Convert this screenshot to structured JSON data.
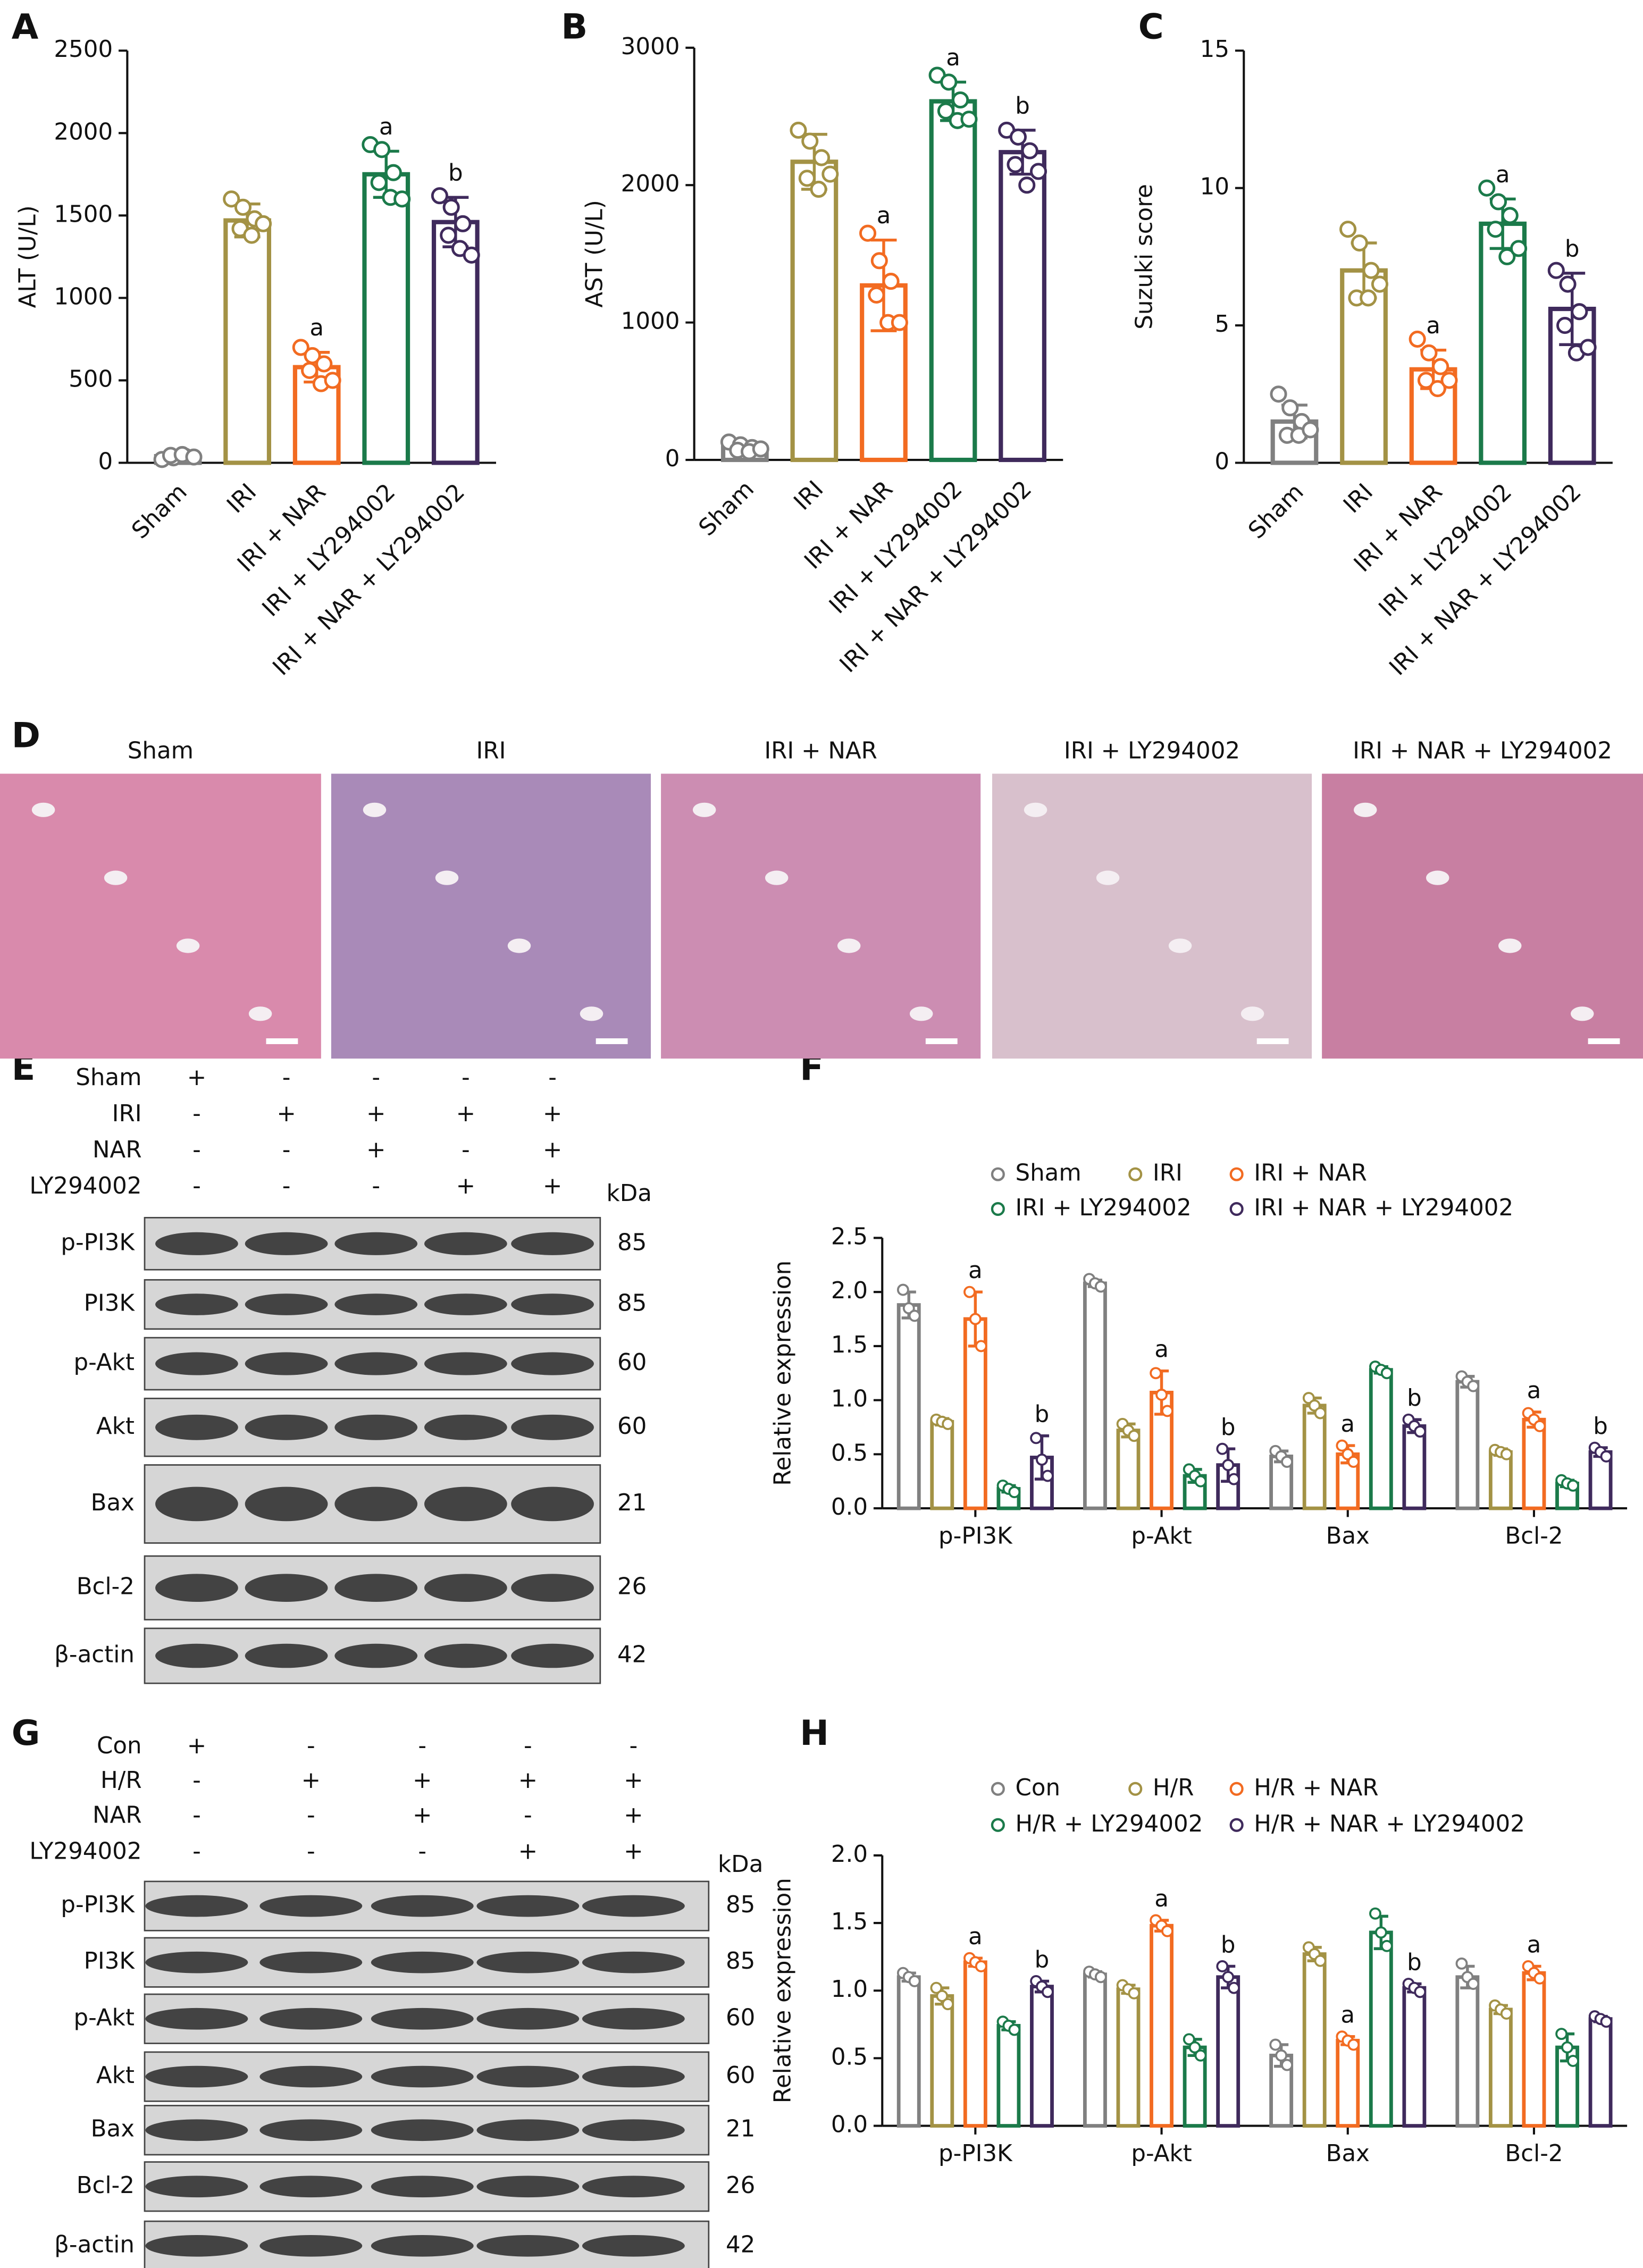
{
  "panel_labels": [
    "A",
    "B",
    "C",
    "D",
    "E",
    "F",
    "G",
    "H"
  ],
  "chart_data": [
    {
      "type": "bar",
      "ylabel": "ALT (U/L)",
      "categories": [
        "Sham",
        "IRI",
        "IRI + NAR",
        "IRI + LY294002",
        "IRI + NAR + LY294002"
      ],
      "colors": [
        "#808080",
        "#a39245",
        "#f26b21",
        "#1b7a4a",
        "#3f2a5c"
      ],
      "values": [
        40,
        1470,
        580,
        1750,
        1460
      ],
      "errors": [
        15,
        100,
        90,
        140,
        150
      ],
      "points": [
        [
          20,
          30,
          40,
          45,
          50,
          35
        ],
        [
          1600,
          1550,
          1480,
          1420,
          1380,
          1450
        ],
        [
          700,
          650,
          600,
          560,
          480,
          500
        ],
        [
          1930,
          1900,
          1760,
          1700,
          1610,
          1600
        ],
        [
          1620,
          1550,
          1450,
          1380,
          1300,
          1260
        ]
      ],
      "annotations": [
        null,
        null,
        "a",
        "a",
        "b"
      ],
      "ylim": [
        0,
        2500
      ],
      "yticks": [
        0,
        500,
        1000,
        1500,
        2000,
        2500
      ]
    },
    {
      "type": "bar",
      "ylabel": "AST (U/L)",
      "categories": [
        "Sham",
        "IRI",
        "IRI + NAR",
        "IRI + LY294002",
        "IRI + NAR + LY294002"
      ],
      "colors": [
        "#808080",
        "#a39245",
        "#f26b21",
        "#1b7a4a",
        "#3f2a5c"
      ],
      "values": [
        90,
        2170,
        1270,
        2610,
        2240
      ],
      "errors": [
        30,
        200,
        330,
        140,
        160
      ],
      "points": [
        [
          130,
          110,
          90,
          70,
          60,
          80
        ],
        [
          2400,
          2320,
          2200,
          2050,
          1970,
          2080
        ],
        [
          1650,
          1450,
          1300,
          1200,
          1000,
          1000
        ],
        [
          2800,
          2750,
          2620,
          2540,
          2470,
          2480
        ],
        [
          2400,
          2350,
          2250,
          2150,
          2000,
          2100
        ]
      ],
      "annotations": [
        null,
        null,
        "a",
        "a",
        "b"
      ],
      "ylim": [
        0,
        3000
      ],
      "yticks": [
        0,
        1000,
        2000,
        3000
      ]
    },
    {
      "type": "bar",
      "ylabel": "Suzuki score",
      "categories": [
        "Sham",
        "IRI",
        "IRI + NAR",
        "IRI + LY294002",
        "IRI + NAR + LY294002"
      ],
      "colors": [
        "#808080",
        "#a39245",
        "#f26b21",
        "#1b7a4a",
        "#3f2a5c"
      ],
      "values": [
        1.5,
        7,
        3.4,
        8.7,
        5.6
      ],
      "errors": [
        0.6,
        1,
        0.7,
        0.9,
        1.3
      ],
      "points": [
        [
          2.5,
          2,
          1.5,
          1,
          1,
          1.2
        ],
        [
          8.5,
          8,
          7,
          6,
          6,
          6.5
        ],
        [
          4.5,
          4,
          3.5,
          3,
          2.7,
          3
        ],
        [
          10,
          9.5,
          9,
          8.5,
          7.5,
          7.8
        ],
        [
          7,
          6.5,
          5.5,
          5,
          4,
          4.2
        ]
      ],
      "annotations": [
        null,
        null,
        "a",
        "a",
        "b"
      ],
      "ylim": [
        0,
        15
      ],
      "yticks": [
        0,
        5,
        10,
        15
      ]
    },
    {
      "type": "grouped_bar",
      "ylabel": "Relative expression",
      "categories": [
        "p-PI3K",
        "p-Akt",
        "Bax",
        "Bcl-2"
      ],
      "series": [
        {
          "name": "Sham",
          "color": "#808080",
          "values": [
            1.88,
            2.08,
            0.48,
            1.17
          ],
          "errors": [
            0.12,
            0.03,
            0.05,
            0.05
          ],
          "points": [
            [
              2.02,
              1.85,
              1.78
            ],
            [
              2.12,
              2.08,
              2.05
            ],
            [
              0.53,
              0.48,
              0.43
            ],
            [
              1.22,
              1.17,
              1.13
            ]
          ],
          "annotations": [
            null,
            null,
            null,
            null
          ]
        },
        {
          "name": "IRI",
          "color": "#a39245",
          "values": [
            0.8,
            0.72,
            0.95,
            0.52
          ],
          "errors": [
            0.03,
            0.06,
            0.07,
            0.03
          ],
          "points": [
            [
              0.82,
              0.8,
              0.78
            ],
            [
              0.78,
              0.72,
              0.67
            ],
            [
              1.02,
              0.95,
              0.88
            ],
            [
              0.54,
              0.52,
              0.5
            ]
          ],
          "annotations": [
            null,
            null,
            null,
            null
          ]
        },
        {
          "name": "IRI + NAR",
          "color": "#f26b21",
          "values": [
            1.75,
            1.07,
            0.5,
            0.82
          ],
          "errors": [
            0.25,
            0.2,
            0.08,
            0.07
          ],
          "points": [
            [
              2.0,
              1.75,
              1.5
            ],
            [
              1.25,
              1.05,
              0.9
            ],
            [
              0.58,
              0.5,
              0.43
            ],
            [
              0.88,
              0.82,
              0.76
            ]
          ],
          "annotations": [
            "a",
            "a",
            "a",
            "a"
          ]
        },
        {
          "name": "IRI + LY294002",
          "color": "#1b7a4a",
          "values": [
            0.18,
            0.3,
            1.28,
            0.23
          ],
          "errors": [
            0.03,
            0.06,
            0.03,
            0.03
          ],
          "points": [
            [
              0.21,
              0.18,
              0.15
            ],
            [
              0.36,
              0.3,
              0.25
            ],
            [
              1.31,
              1.28,
              1.25
            ],
            [
              0.26,
              0.23,
              0.21
            ]
          ],
          "annotations": [
            null,
            null,
            null,
            null
          ]
        },
        {
          "name": "IRI + NAR + LY294002",
          "color": "#3f2a5c",
          "values": [
            0.47,
            0.4,
            0.76,
            0.52
          ],
          "errors": [
            0.2,
            0.15,
            0.06,
            0.04
          ],
          "points": [
            [
              0.65,
              0.45,
              0.3
            ],
            [
              0.55,
              0.4,
              0.27
            ],
            [
              0.82,
              0.76,
              0.71
            ],
            [
              0.56,
              0.52,
              0.48
            ]
          ],
          "annotations": [
            "b",
            "b",
            "b",
            "b"
          ]
        }
      ],
      "ylim": [
        0,
        2.5
      ],
      "yticks": [
        {
          "value": 0,
          "label": "0.0"
        },
        0.5,
        {
          "value": 1,
          "label": "1.0"
        },
        1.5,
        {
          "value": 2,
          "label": "2.0"
        },
        2.5
      ]
    },
    {
      "type": "grouped_bar",
      "ylabel": "Relative expression",
      "categories": [
        "p-PI3K",
        "p-Akt",
        "Bax",
        "Bcl-2"
      ],
      "series": [
        {
          "name": "Con",
          "color": "#808080",
          "values": [
            1.1,
            1.12,
            0.52,
            1.1
          ],
          "errors": [
            0.03,
            0.02,
            0.08,
            0.08
          ],
          "points": [
            [
              1.13,
              1.1,
              1.07
            ],
            [
              1.14,
              1.12,
              1.1
            ],
            [
              0.6,
              0.52,
              0.45
            ],
            [
              1.2,
              1.1,
              1.05
            ]
          ],
          "annotations": [
            null,
            null,
            null,
            null
          ]
        },
        {
          "name": "H/R",
          "color": "#a39245",
          "values": [
            0.96,
            1.01,
            1.27,
            0.86
          ],
          "errors": [
            0.06,
            0.03,
            0.05,
            0.03
          ],
          "points": [
            [
              1.02,
              0.96,
              0.9
            ],
            [
              1.04,
              1.01,
              0.98
            ],
            [
              1.32,
              1.27,
              1.22
            ],
            [
              0.89,
              0.86,
              0.83
            ]
          ],
          "annotations": [
            null,
            null,
            null,
            null
          ]
        },
        {
          "name": "H/R + NAR",
          "color": "#f26b21",
          "values": [
            1.21,
            1.48,
            0.63,
            1.13
          ],
          "errors": [
            0.03,
            0.04,
            0.03,
            0.05
          ],
          "points": [
            [
              1.24,
              1.21,
              1.18
            ],
            [
              1.52,
              1.48,
              1.44
            ],
            [
              0.66,
              0.63,
              0.6
            ],
            [
              1.18,
              1.13,
              1.09
            ]
          ],
          "annotations": [
            "a",
            "a",
            "a",
            "a"
          ]
        },
        {
          "name": "H/R + LY294002",
          "color": "#1b7a4a",
          "values": [
            0.74,
            0.58,
            1.43,
            0.58
          ],
          "errors": [
            0.03,
            0.06,
            0.12,
            0.1
          ],
          "points": [
            [
              0.77,
              0.74,
              0.71
            ],
            [
              0.64,
              0.58,
              0.52
            ],
            [
              1.57,
              1.43,
              1.33
            ],
            [
              0.68,
              0.58,
              0.48
            ]
          ],
          "annotations": [
            null,
            null,
            null,
            null
          ]
        },
        {
          "name": "H/R + NAR + LY294002",
          "color": "#3f2a5c",
          "values": [
            1.03,
            1.1,
            1.02,
            0.79
          ],
          "errors": [
            0.04,
            0.08,
            0.03,
            0.02
          ],
          "points": [
            [
              1.07,
              1.03,
              0.99
            ],
            [
              1.18,
              1.1,
              1.02
            ],
            [
              1.05,
              1.02,
              0.99
            ],
            [
              0.81,
              0.79,
              0.77
            ]
          ],
          "annotations": [
            "b",
            "b",
            "b",
            null
          ]
        }
      ],
      "ylim": [
        0,
        2.0
      ],
      "yticks": [
        {
          "value": 0,
          "label": "0.0"
        },
        0.5,
        {
          "value": 1,
          "label": "1.0"
        },
        1.5,
        {
          "value": 2,
          "label": "2.0"
        }
      ]
    }
  ],
  "histology": {
    "labels": [
      "Sham",
      "IRI",
      "IRI + NAR",
      "IRI + LY294002",
      "IRI + NAR + LY294002"
    ]
  },
  "blots": [
    {
      "conditions": [
        {
          "name": "Sham",
          "signs": [
            "+",
            "-",
            "-",
            "-",
            "-"
          ]
        },
        {
          "name": "IRI",
          "signs": [
            "-",
            "+",
            "+",
            "+",
            "+"
          ]
        },
        {
          "name": "NAR",
          "signs": [
            "-",
            "-",
            "+",
            "-",
            "+"
          ]
        },
        {
          "name": "LY294002",
          "signs": [
            "-",
            "-",
            "-",
            "+",
            "+"
          ]
        }
      ],
      "unit": "kDa",
      "bands": [
        {
          "name": "p-PI3K",
          "kda": 85
        },
        {
          "name": "PI3K",
          "kda": 85
        },
        {
          "name": "p-Akt",
          "kda": 60
        },
        {
          "name": "Akt",
          "kda": 60
        },
        {
          "name": "Bax",
          "kda": 21
        },
        {
          "name": "Bcl-2",
          "kda": 26
        },
        {
          "name": "β-actin",
          "kda": 42
        }
      ]
    },
    {
      "conditions": [
        {
          "name": "Con",
          "signs": [
            "+",
            "-",
            "-",
            "-",
            "-"
          ]
        },
        {
          "name": "H/R",
          "signs": [
            "-",
            "+",
            "+",
            "+",
            "+"
          ]
        },
        {
          "name": "NAR",
          "signs": [
            "-",
            "-",
            "+",
            "-",
            "+"
          ]
        },
        {
          "name": "LY294002",
          "signs": [
            "-",
            "-",
            "-",
            "+",
            "+"
          ]
        }
      ],
      "unit": "kDa",
      "bands": [
        {
          "name": "p-PI3K",
          "kda": 85
        },
        {
          "name": "PI3K",
          "kda": 85
        },
        {
          "name": "p-Akt",
          "kda": 60
        },
        {
          "name": "Akt",
          "kda": 60
        },
        {
          "name": "Bax",
          "kda": 21
        },
        {
          "name": "Bcl-2",
          "kda": 26
        },
        {
          "name": "β-actin",
          "kda": 42
        }
      ]
    }
  ]
}
